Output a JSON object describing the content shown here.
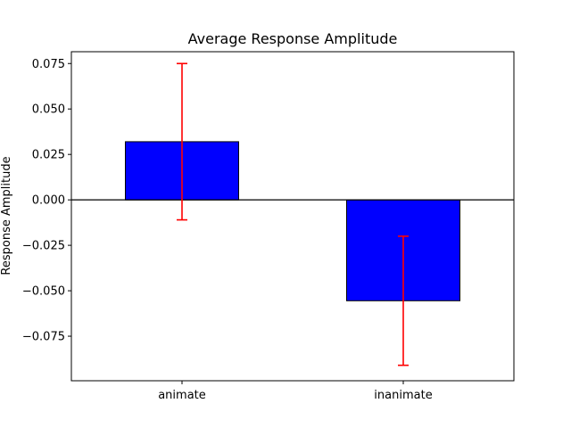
{
  "chart_data": {
    "type": "bar",
    "title": "Average Response Amplitude",
    "xlabel": "",
    "ylabel": "Response Amplitude",
    "categories": [
      "animate",
      "inanimate"
    ],
    "values": [
      0.032,
      -0.0555
    ],
    "error_low": [
      -0.011,
      -0.091
    ],
    "error_high": [
      0.075,
      -0.02
    ],
    "ylim": [
      -0.0995,
      0.0815
    ],
    "yticks": [
      0.075,
      0.05,
      0.025,
      0.0,
      -0.025,
      -0.05,
      -0.075
    ],
    "ytick_labels": [
      "0.075",
      "0.050",
      "0.025",
      "0.000",
      "−0.025",
      "−0.050",
      "−0.075"
    ],
    "zero_line": true,
    "grid": false,
    "colors": {
      "bar_fill": "#0000ff",
      "bar_edge": "#000000",
      "error_bar": "#ff0000",
      "zero_line": "#000000"
    }
  }
}
